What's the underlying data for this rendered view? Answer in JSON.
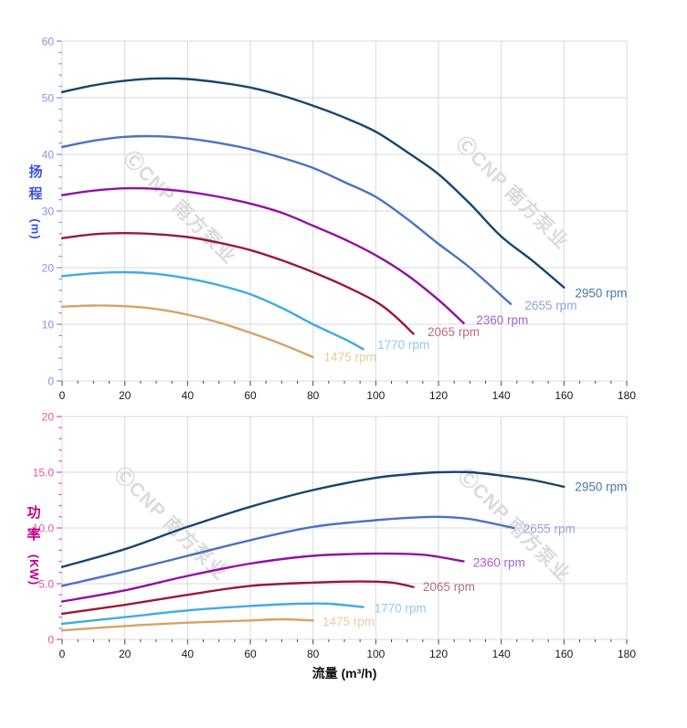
{
  "watermark": {
    "text": "ⒸCNP 南方泵业",
    "color": "#DBDBDB"
  },
  "x_axis": {
    "title": "流量 (m³/h)",
    "min": 0,
    "max": 180,
    "major": 20,
    "minor": 5,
    "tick_labels": [
      "0",
      "20",
      "40",
      "60",
      "80",
      "100",
      "120",
      "140",
      "160",
      "180"
    ],
    "label_color": "#1A1A1A",
    "tick_color": "#4A4A4A"
  },
  "chart_data": [
    {
      "type": "line",
      "name": "head-chart",
      "title": "",
      "xlabel": "流量 (m³/h)",
      "ylabel": "扬程 (m)",
      "ylabel_chars": [
        "扬",
        "程"
      ],
      "ylabel_unit": "(m)",
      "xlim": [
        0,
        180
      ],
      "ylim": [
        0,
        60
      ],
      "y_major": 10,
      "y_minor": 2,
      "y_tick_labels": [
        "0",
        "10",
        "20",
        "30",
        "40",
        "50",
        "60"
      ],
      "axis_tick_color": "#8493E0",
      "axis_title_color": "#3A53D8",
      "grid": true,
      "legend_position": "end-of-line-labels",
      "series": [
        {
          "name": "2950 rpm",
          "color": "#17466F",
          "label_color": "#4579AE",
          "points": [
            [
              0,
              51
            ],
            [
              10,
              52.2
            ],
            [
              20,
              53
            ],
            [
              30,
              53.4
            ],
            [
              40,
              53.3
            ],
            [
              50,
              52.7
            ],
            [
              60,
              51.8
            ],
            [
              70,
              50.4
            ],
            [
              80,
              48.6
            ],
            [
              90,
              46.5
            ],
            [
              100,
              44
            ],
            [
              110,
              40.4
            ],
            [
              120,
              36.5
            ],
            [
              130,
              31.3
            ],
            [
              140,
              25.5
            ],
            [
              150,
              21.2
            ],
            [
              160,
              16.5
            ]
          ],
          "label_at": [
            163.5,
            15.5
          ]
        },
        {
          "name": "2655 rpm",
          "color": "#4A72C4",
          "label_color": "#93A3D9",
          "points": [
            [
              0,
              41.3
            ],
            [
              10,
              42.4
            ],
            [
              20,
              43.1
            ],
            [
              30,
              43.2
            ],
            [
              40,
              42.8
            ],
            [
              50,
              42
            ],
            [
              60,
              40.9
            ],
            [
              70,
              39.4
            ],
            [
              80,
              37.6
            ],
            [
              90,
              35.1
            ],
            [
              100,
              32.5
            ],
            [
              110,
              28.6
            ],
            [
              120,
              24.2
            ],
            [
              130,
              20
            ],
            [
              143,
              13.6
            ]
          ],
          "label_at": [
            147.5,
            13.3
          ]
        },
        {
          "name": "2360 rpm",
          "color": "#9410A2",
          "label_color": "#A763C6",
          "points": [
            [
              0,
              32.8
            ],
            [
              10,
              33.6
            ],
            [
              20,
              34
            ],
            [
              30,
              33.9
            ],
            [
              40,
              33.4
            ],
            [
              50,
              32.5
            ],
            [
              60,
              31.3
            ],
            [
              70,
              29.7
            ],
            [
              80,
              27.4
            ],
            [
              90,
              25
            ],
            [
              100,
              22.2
            ],
            [
              110,
              18.7
            ],
            [
              120,
              14.3
            ],
            [
              128,
              10.2
            ]
          ],
          "label_at": [
            132,
            10.7
          ]
        },
        {
          "name": "2065 rpm",
          "color": "#9C1838",
          "label_color": "#B56F80",
          "points": [
            [
              0,
              25.2
            ],
            [
              10,
              25.9
            ],
            [
              20,
              26.1
            ],
            [
              30,
              25.9
            ],
            [
              40,
              25.4
            ],
            [
              50,
              24.4
            ],
            [
              60,
              23.1
            ],
            [
              70,
              21.3
            ],
            [
              80,
              19.2
            ],
            [
              90,
              16.8
            ],
            [
              100,
              14
            ],
            [
              106,
              11.5
            ],
            [
              112,
              8.3
            ]
          ],
          "label_at": [
            116.5,
            8.6
          ]
        },
        {
          "name": "1770 rpm",
          "color": "#41AAE8",
          "label_color": "#8FCBF0",
          "points": [
            [
              0,
              18.5
            ],
            [
              10,
              19
            ],
            [
              20,
              19.2
            ],
            [
              30,
              18.9
            ],
            [
              40,
              18.1
            ],
            [
              50,
              16.9
            ],
            [
              60,
              15.3
            ],
            [
              70,
              12.9
            ],
            [
              80,
              10
            ],
            [
              90,
              7.4
            ],
            [
              96,
              5.6
            ]
          ],
          "label_at": [
            100.5,
            6.4
          ]
        },
        {
          "name": "1475 rpm",
          "color": "#D8A266",
          "label_color": "#EACA9F",
          "points": [
            [
              0,
              13.1
            ],
            [
              10,
              13.3
            ],
            [
              20,
              13.2
            ],
            [
              30,
              12.7
            ],
            [
              40,
              11.7
            ],
            [
              50,
              10.3
            ],
            [
              60,
              8.5
            ],
            [
              70,
              6.5
            ],
            [
              80,
              4.2
            ]
          ],
          "label_at": [
            83.5,
            4.2
          ]
        }
      ]
    },
    {
      "type": "line",
      "name": "power-chart",
      "title": "",
      "xlabel": "流量 (m³/h)",
      "ylabel": "功率 (KW)",
      "ylabel_chars": [
        "功",
        "率"
      ],
      "ylabel_unit": "(KW)",
      "xlim": [
        0,
        180
      ],
      "ylim": [
        0,
        20
      ],
      "y_major": 5,
      "y_minor": 1,
      "y_tick_labels": [
        "0",
        "5.0",
        "10.0",
        "15.0",
        "20"
      ],
      "axis_tick_color": "#E2569E",
      "axis_title_color": "#C2008A",
      "grid": true,
      "legend_position": "end-of-line-labels",
      "series": [
        {
          "name": "2950 rpm",
          "color": "#17466F",
          "label_color": "#4579AE",
          "points": [
            [
              0,
              6.5
            ],
            [
              20,
              8.1
            ],
            [
              40,
              10.1
            ],
            [
              60,
              11.9
            ],
            [
              80,
              13.4
            ],
            [
              100,
              14.5
            ],
            [
              110,
              14.8
            ],
            [
              120,
              15
            ],
            [
              130,
              15
            ],
            [
              140,
              14.7
            ],
            [
              150,
              14.3
            ],
            [
              160,
              13.7
            ]
          ],
          "label_at": [
            163.5,
            13.7
          ]
        },
        {
          "name": "2655 rpm",
          "color": "#4A72C4",
          "label_color": "#93A3D9",
          "points": [
            [
              0,
              4.8
            ],
            [
              20,
              6.1
            ],
            [
              40,
              7.5
            ],
            [
              60,
              8.9
            ],
            [
              80,
              10.1
            ],
            [
              100,
              10.7
            ],
            [
              110,
              10.9
            ],
            [
              120,
              11
            ],
            [
              130,
              10.8
            ],
            [
              144,
              10
            ]
          ],
          "label_at": [
            147,
            9.9
          ]
        },
        {
          "name": "2360 rpm",
          "color": "#9410A2",
          "label_color": "#A763C6",
          "points": [
            [
              0,
              3.4
            ],
            [
              20,
              4.4
            ],
            [
              40,
              5.7
            ],
            [
              60,
              6.8
            ],
            [
              80,
              7.5
            ],
            [
              100,
              7.7
            ],
            [
              115,
              7.6
            ],
            [
              128,
              7
            ]
          ],
          "label_at": [
            131,
            6.9
          ]
        },
        {
          "name": "2065 rpm",
          "color": "#9C1838",
          "label_color": "#B56F80",
          "points": [
            [
              0,
              2.3
            ],
            [
              20,
              3.1
            ],
            [
              40,
              4
            ],
            [
              60,
              4.8
            ],
            [
              80,
              5.1
            ],
            [
              95,
              5.2
            ],
            [
              105,
              5.1
            ],
            [
              112,
              4.7
            ]
          ],
          "label_at": [
            115,
            4.7
          ]
        },
        {
          "name": "1770 rpm",
          "color": "#41AAE8",
          "label_color": "#8FCBF0",
          "points": [
            [
              0,
              1.4
            ],
            [
              20,
              2
            ],
            [
              40,
              2.6
            ],
            [
              60,
              3
            ],
            [
              75,
              3.2
            ],
            [
              85,
              3.2
            ],
            [
              96,
              2.9
            ]
          ],
          "label_at": [
            99.5,
            2.8
          ]
        },
        {
          "name": "1475 rpm",
          "color": "#D8A266",
          "label_color": "#EACA9F",
          "points": [
            [
              0,
              0.8
            ],
            [
              20,
              1.2
            ],
            [
              40,
              1.5
            ],
            [
              60,
              1.7
            ],
            [
              70,
              1.8
            ],
            [
              80,
              1.7
            ]
          ],
          "label_at": [
            83,
            1.6
          ]
        }
      ]
    }
  ]
}
